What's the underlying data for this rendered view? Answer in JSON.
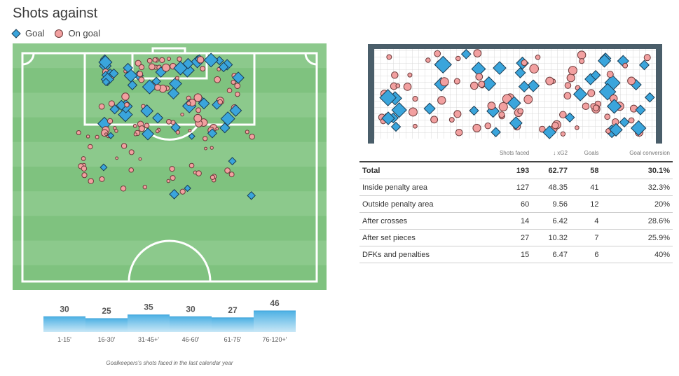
{
  "page_title": "Shots against",
  "legend": [
    {
      "label": "Goal",
      "icon": "diamond-icon",
      "color": "#3aa5dc"
    },
    {
      "label": "On goal",
      "icon": "circle-icon",
      "color": "#f2a0a0"
    }
  ],
  "colors": {
    "goal": "#3aa5dc",
    "on_goal": "#f2a0a0",
    "pitch_light": "#8cc98c",
    "pitch_dark": "#7fc27f"
  },
  "table": {
    "headers": [
      "",
      "Shots faced",
      "↓ xG2",
      "Goals",
      "Goal conversion"
    ],
    "rows": [
      {
        "label": "Total",
        "shots": "193",
        "xg": "62.77",
        "goals": "58",
        "conv": "30.1%"
      },
      {
        "label": "Inside penalty area",
        "shots": "127",
        "xg": "48.35",
        "goals": "41",
        "conv": "32.3%"
      },
      {
        "label": "Outside penalty area",
        "shots": "60",
        "xg": "9.56",
        "goals": "12",
        "conv": "20%"
      },
      {
        "label": "After crosses",
        "shots": "14",
        "xg": "6.42",
        "goals": "4",
        "conv": "28.6%"
      },
      {
        "label": "After set pieces",
        "shots": "27",
        "xg": "10.32",
        "goals": "7",
        "conv": "25.9%"
      },
      {
        "label": "DFKs and penalties",
        "shots": "15",
        "xg": "6.47",
        "goals": "6",
        "conv": "40%"
      }
    ]
  },
  "timeline": {
    "intervals": [
      "1-15'",
      "16-30'",
      "31-45+'",
      "46-60'",
      "61-75'",
      "76-120+'"
    ],
    "values": [
      30,
      25,
      35,
      30,
      27,
      46
    ]
  },
  "caption": "Goalkeepers's shots faced in the last calendar year"
}
